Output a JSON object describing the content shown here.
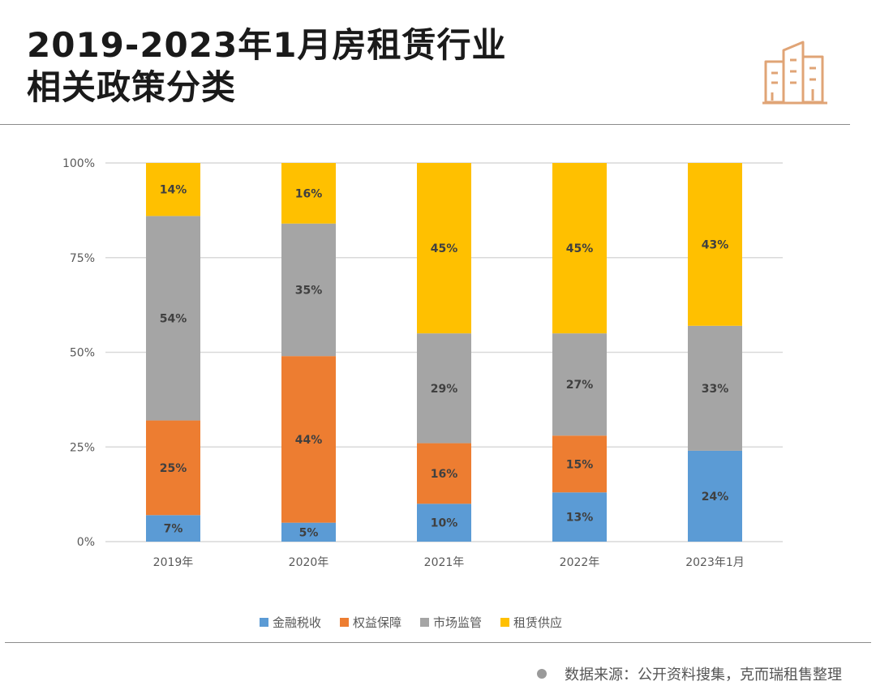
{
  "header": {
    "title_line1": "2019-2023年1月房租赁行业",
    "title_line2": "相关政策分类"
  },
  "footer": {
    "source": "数据来源：公开资料搜集，克而瑞租售整理"
  },
  "colors": {
    "finance": "#5b9bd5",
    "rights": "#ed7d31",
    "market": "#a5a5a5",
    "supply": "#ffc000",
    "grid": "#d9d9d9",
    "icon": "#e0a476"
  },
  "chart_data": {
    "type": "bar",
    "stacked": true,
    "categories": [
      "2019年",
      "2020年",
      "2021年",
      "2022年",
      "2023年1月"
    ],
    "y_ticks": [
      "0%",
      "25%",
      "50%",
      "75%",
      "100%"
    ],
    "ylim": [
      0,
      100
    ],
    "legend_position": "bottom",
    "series": [
      {
        "name": "金融税收",
        "color": "#5b9bd5",
        "values": [
          7,
          5,
          10,
          13,
          24
        ],
        "labels": [
          "7%",
          "5%",
          "10%",
          "13%",
          "24%"
        ]
      },
      {
        "name": "权益保障",
        "color": "#ed7d31",
        "values": [
          25,
          44,
          16,
          15,
          0
        ],
        "labels": [
          "25%",
          "44%",
          "16%",
          "15%",
          ""
        ]
      },
      {
        "name": "市场监管",
        "color": "#a5a5a5",
        "values": [
          54,
          35,
          29,
          27,
          33
        ],
        "labels": [
          "54%",
          "35%",
          "29%",
          "27%",
          "33%"
        ]
      },
      {
        "name": "租赁供应",
        "color": "#ffc000",
        "values": [
          14,
          16,
          45,
          45,
          43
        ],
        "labels": [
          "14%",
          "16%",
          "45%",
          "45%",
          "43%"
        ]
      }
    ]
  }
}
